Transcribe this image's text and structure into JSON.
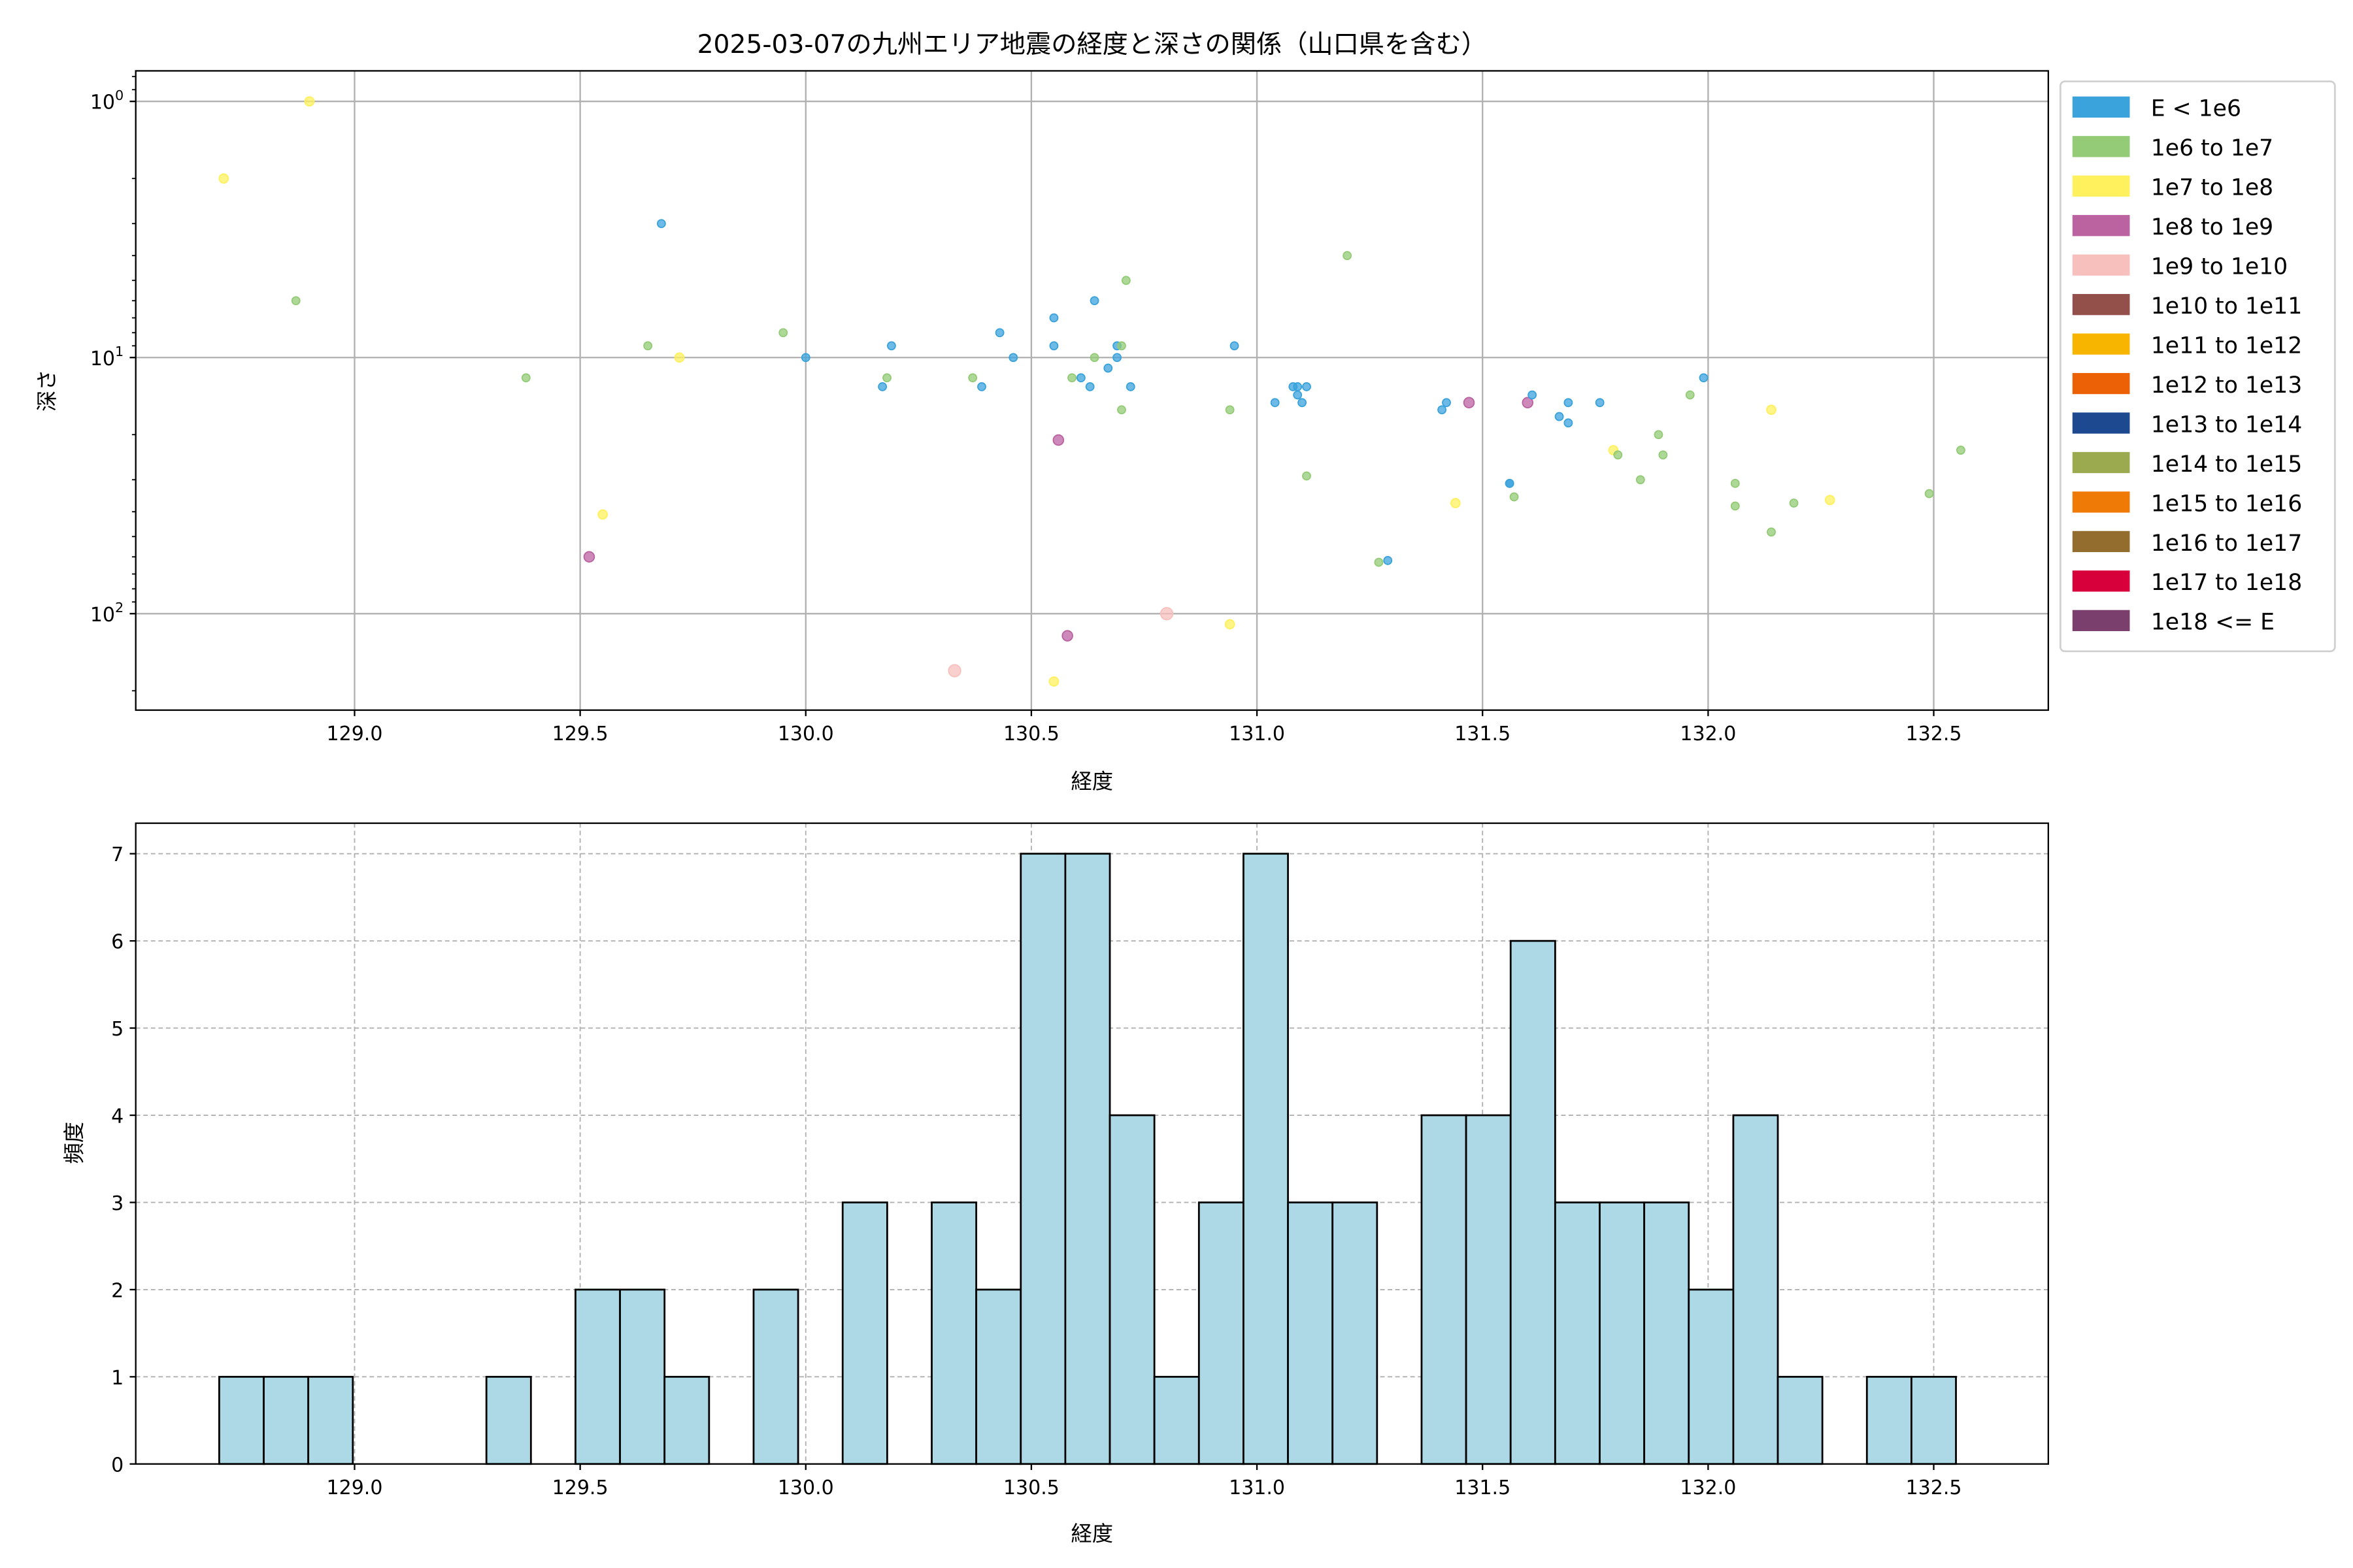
{
  "chart_data": [
    {
      "type": "scatter",
      "title": "2025-03-07の九州エリア地震の経度と深さの関係（山口県を含む）",
      "xlabel": "経度",
      "ylabel": "深さ",
      "xlim": [
        128.515,
        132.754
      ],
      "ylim": [
        238,
        0.76
      ],
      "yscale": "log",
      "y_inverted": true,
      "grid": true,
      "xticks": [
        129.0,
        129.5,
        130.0,
        130.5,
        131.0,
        131.5,
        132.0,
        132.5
      ],
      "xtick_labels": [
        "129.0",
        "129.5",
        "130.0",
        "130.5",
        "131.0",
        "131.5",
        "132.0",
        "132.5"
      ],
      "yticks": [
        1,
        10,
        100
      ],
      "ytick_labels": [
        {
          "base": "10",
          "exp": "0"
        },
        {
          "base": "10",
          "exp": "1"
        },
        {
          "base": "10",
          "exp": "2"
        }
      ],
      "legend_placement": "outside-right-top",
      "legend": [
        {
          "label": "E < 1e6",
          "color": "#3ba3dc"
        },
        {
          "label": "1e6 to 1e7",
          "color": "#93cb76"
        },
        {
          "label": "1e7 to 1e8",
          "color": "#fff05d"
        },
        {
          "label": "1e8 to 1e9",
          "color": "#bb62a1"
        },
        {
          "label": "1e9 to 1e10",
          "color": "#f7c0bd"
        },
        {
          "label": "1e10 to 1e11",
          "color": "#93504b"
        },
        {
          "label": "1e11 to 1e12",
          "color": "#f8b500"
        },
        {
          "label": "1e12 to 1e13",
          "color": "#ec6105"
        },
        {
          "label": "1e13 to 1e14",
          "color": "#1c4990"
        },
        {
          "label": "1e14 to 1e15",
          "color": "#9caa4f"
        },
        {
          "label": "1e15 to 1e16",
          "color": "#ef7a05"
        },
        {
          "label": "1e16 to 1e17",
          "color": "#936d2e"
        },
        {
          "label": "1e17 to 1e18",
          "color": "#d8003a"
        },
        {
          "label": "1e18 <= E",
          "color": "#7b3f6d"
        }
      ],
      "points_format": [
        "longitude",
        "depth",
        "legend_index"
      ],
      "points": [
        [
          128.71,
          2,
          2
        ],
        [
          128.9,
          1,
          2
        ],
        [
          128.87,
          6,
          1
        ],
        [
          129.38,
          12,
          1
        ],
        [
          129.68,
          3,
          0
        ],
        [
          129.65,
          9,
          1
        ],
        [
          129.72,
          10,
          2
        ],
        [
          129.95,
          8,
          1
        ],
        [
          130.0,
          10,
          0
        ],
        [
          129.55,
          41,
          2
        ],
        [
          129.52,
          60,
          3
        ],
        [
          130.19,
          9,
          0
        ],
        [
          130.18,
          12,
          1
        ],
        [
          130.17,
          13,
          0
        ],
        [
          130.37,
          12,
          1
        ],
        [
          130.39,
          13,
          0
        ],
        [
          130.43,
          8,
          0
        ],
        [
          130.46,
          10,
          0
        ],
        [
          130.55,
          7,
          0
        ],
        [
          130.55,
          9,
          0
        ],
        [
          130.56,
          21,
          3
        ],
        [
          130.33,
          167,
          4
        ],
        [
          130.55,
          184,
          2
        ],
        [
          130.58,
          122,
          3
        ],
        [
          130.59,
          12,
          1
        ],
        [
          130.61,
          12,
          0
        ],
        [
          130.63,
          13,
          0
        ],
        [
          130.64,
          6,
          0
        ],
        [
          130.64,
          10,
          1
        ],
        [
          130.67,
          11,
          0
        ],
        [
          130.69,
          10,
          0
        ],
        [
          130.69,
          9,
          0
        ],
        [
          130.7,
          9,
          1
        ],
        [
          130.71,
          5,
          1
        ],
        [
          130.72,
          13,
          0
        ],
        [
          130.7,
          16,
          1
        ],
        [
          130.8,
          100,
          4
        ],
        [
          130.94,
          110,
          2
        ],
        [
          130.94,
          16,
          1
        ],
        [
          130.95,
          9,
          0
        ],
        [
          131.04,
          15,
          0
        ],
        [
          131.08,
          13,
          0
        ],
        [
          131.09,
          14,
          0
        ],
        [
          131.1,
          15,
          0
        ],
        [
          131.09,
          13,
          0
        ],
        [
          131.11,
          13,
          0
        ],
        [
          131.11,
          29,
          1
        ],
        [
          131.2,
          4,
          1
        ],
        [
          131.27,
          63,
          1
        ],
        [
          131.29,
          62,
          0
        ],
        [
          131.41,
          16,
          0
        ],
        [
          131.42,
          15,
          0
        ],
        [
          131.44,
          37,
          2
        ],
        [
          131.47,
          15,
          3
        ],
        [
          131.56,
          31,
          0
        ],
        [
          131.56,
          31,
          0
        ],
        [
          131.57,
          35,
          1
        ],
        [
          131.6,
          15,
          3
        ],
        [
          131.61,
          14,
          0
        ],
        [
          131.67,
          17,
          0
        ],
        [
          131.69,
          15,
          0
        ],
        [
          131.69,
          18,
          0
        ],
        [
          131.76,
          15,
          0
        ],
        [
          131.79,
          23,
          2
        ],
        [
          131.8,
          24,
          1
        ],
        [
          131.85,
          30,
          1
        ],
        [
          131.89,
          20,
          1
        ],
        [
          131.9,
          24,
          1
        ],
        [
          131.96,
          14,
          1
        ],
        [
          131.99,
          12,
          0
        ],
        [
          132.06,
          31,
          1
        ],
        [
          132.06,
          38,
          1
        ],
        [
          132.14,
          16,
          2
        ],
        [
          132.14,
          48,
          1
        ],
        [
          132.19,
          37,
          1
        ],
        [
          132.27,
          36,
          2
        ],
        [
          132.49,
          34,
          1
        ],
        [
          132.56,
          23,
          1
        ]
      ]
    },
    {
      "type": "bar",
      "subtype": "histogram",
      "xlabel": "経度",
      "ylabel": "頻度",
      "xlim": [
        128.515,
        132.754
      ],
      "ylim": [
        0,
        7.35
      ],
      "grid": true,
      "grid_style": "dashed",
      "bar_color": "#add8e6",
      "edge_color": "#000000",
      "xticks": [
        129.0,
        129.5,
        130.0,
        130.5,
        131.0,
        131.5,
        132.0,
        132.5
      ],
      "xtick_labels": [
        "129.0",
        "129.5",
        "130.0",
        "130.5",
        "131.0",
        "131.5",
        "132.0",
        "132.5"
      ],
      "yticks": [
        0,
        1,
        2,
        3,
        4,
        5,
        6,
        7
      ],
      "ytick_labels": [
        "0",
        "1",
        "2",
        "3",
        "4",
        "5",
        "6",
        "7"
      ],
      "bin_start": 128.7,
      "bin_width": 0.0987,
      "counts": [
        1,
        1,
        1,
        0,
        0,
        0,
        1,
        0,
        2,
        2,
        1,
        0,
        2,
        0,
        3,
        0,
        3,
        2,
        7,
        7,
        4,
        1,
        3,
        7,
        3,
        3,
        0,
        4,
        4,
        6,
        3,
        3,
        3,
        2,
        4,
        1,
        0,
        1,
        1
      ]
    }
  ]
}
